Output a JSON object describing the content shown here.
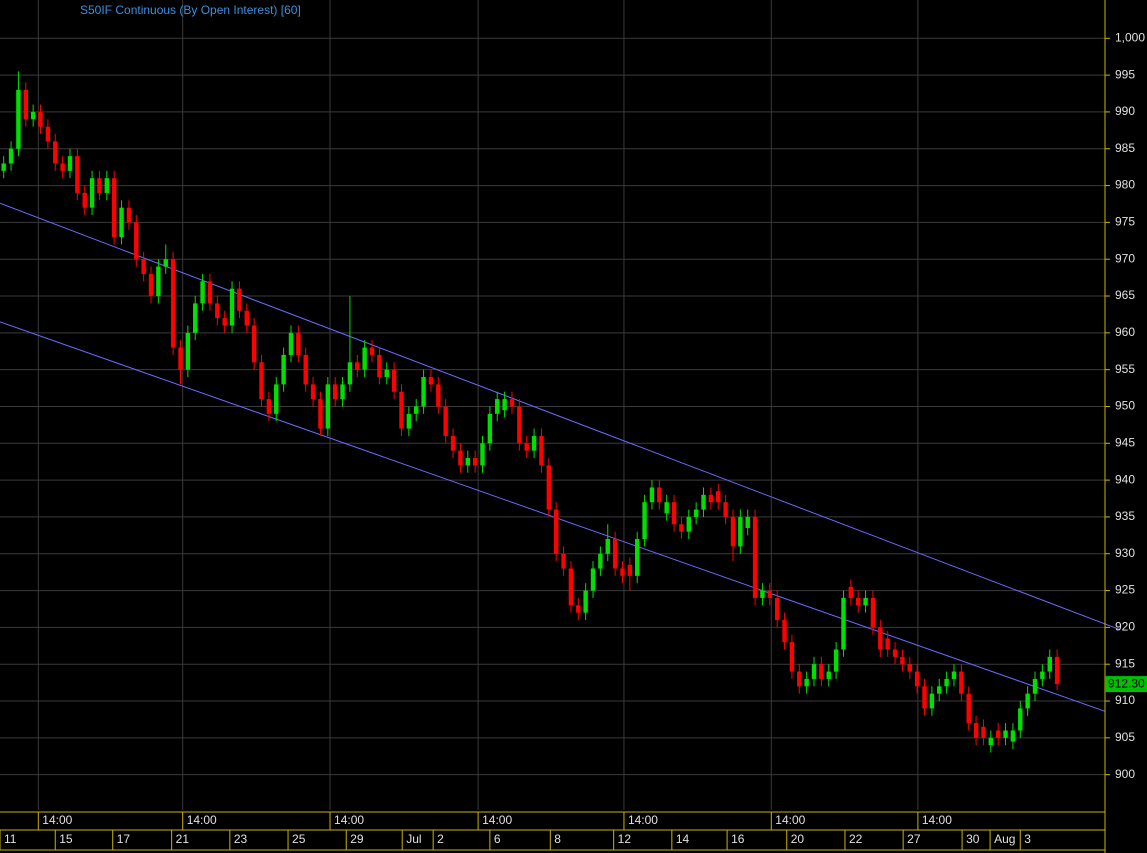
{
  "chart_data": {
    "type": "candlestick",
    "title": "S50IF Continuous (By Open Interest) [60]",
    "xlim": [
      -0.5,
      149.5
    ],
    "ylim": [
      895.2,
      1005.2
    ],
    "yticks": [
      {
        "value": 1000,
        "label": "1,000"
      },
      995,
      990,
      985,
      980,
      975,
      970,
      965,
      960,
      955,
      950,
      945,
      940,
      935,
      930,
      925,
      920,
      915,
      910,
      905,
      900
    ],
    "xticks_time": [
      {
        "value": 4.7,
        "label": "14:00"
      },
      {
        "value": 24.3,
        "label": "14:00"
      },
      {
        "value": 44.3,
        "label": "14:00"
      },
      {
        "value": 64.4,
        "label": "14:00"
      },
      {
        "value": 84.2,
        "label": "14:00"
      },
      {
        "value": 104.2,
        "label": "14:00"
      },
      {
        "value": 124.1,
        "label": "14:00"
      }
    ],
    "xticks": [
      {
        "value": -0.5,
        "label": "11"
      },
      {
        "value": 7,
        "label": "15"
      },
      {
        "value": 14.8,
        "label": "17"
      },
      {
        "value": 22.8,
        "label": "21"
      },
      {
        "value": 30.7,
        "label": "23"
      },
      {
        "value": 38.6,
        "label": "25"
      },
      {
        "value": 46.5,
        "label": "29"
      },
      {
        "value": 54.1,
        "label": "Jul"
      },
      {
        "value": 58.3,
        "label": "2"
      },
      {
        "value": 66,
        "label": "6"
      },
      {
        "value": 74.2,
        "label": "8"
      },
      {
        "value": 82.8,
        "label": "12"
      },
      {
        "value": 90.7,
        "label": "14"
      },
      {
        "value": 98.2,
        "label": "16"
      },
      {
        "value": 106.3,
        "label": "20"
      },
      {
        "value": 114.2,
        "label": "22"
      },
      {
        "value": 122.1,
        "label": "27"
      },
      {
        "value": 130.1,
        "label": "30"
      },
      {
        "value": 133.9,
        "label": "Aug"
      },
      {
        "value": 138,
        "label": "3"
      }
    ],
    "grid": true,
    "up_color": "#00e000",
    "down_color": "#ff0000",
    "open": [
      982,
      983,
      985,
      993,
      989,
      990,
      988,
      986,
      983,
      982,
      984,
      979,
      977,
      981,
      979,
      981,
      973,
      977,
      975,
      970,
      968,
      965,
      969,
      970,
      958,
      955,
      960,
      964,
      967,
      964,
      962,
      961,
      966,
      963,
      961,
      956,
      951,
      949,
      953,
      957,
      960,
      957,
      953,
      951,
      947,
      953,
      951,
      953,
      956,
      955,
      958,
      957,
      954,
      955,
      952,
      947,
      949,
      950,
      954,
      953,
      950,
      946,
      944,
      942,
      943,
      942,
      945,
      949,
      949.5,
      951,
      950,
      945,
      944,
      946,
      942,
      936,
      930,
      928,
      923,
      922,
      925,
      928,
      930,
      932,
      928,
      928.5,
      927,
      932,
      937,
      939,
      935.5,
      937,
      934,
      933,
      935,
      936,
      938,
      938.5,
      937,
      935,
      931,
      933.5,
      935,
      924,
      925,
      924,
      921,
      918,
      914,
      912,
      913,
      915,
      913,
      914,
      917,
      925.5,
      924,
      923,
      924,
      920,
      918.5,
      917,
      916,
      915,
      914,
      912,
      909,
      911,
      912,
      913,
      914,
      911,
      907,
      906.5,
      904,
      906,
      905,
      904.5,
      906,
      909,
      911,
      913,
      914,
      916
    ],
    "high": [
      984,
      986,
      995.5,
      994,
      991,
      991,
      989,
      987,
      984,
      985,
      985,
      980,
      982,
      982,
      982,
      982,
      978,
      978,
      976,
      971,
      969,
      970,
      972,
      971,
      959,
      961,
      965,
      968,
      968,
      965,
      963,
      967,
      967,
      964,
      962,
      957,
      952,
      954,
      958,
      961,
      961,
      958,
      954,
      952,
      954,
      954,
      954,
      965,
      957,
      959,
      959,
      958,
      956,
      956,
      953,
      950,
      951,
      955,
      955,
      954,
      951,
      947,
      945,
      944,
      944,
      946,
      950,
      952,
      952,
      952,
      951,
      946,
      947,
      947,
      943,
      937,
      931,
      929,
      924,
      926,
      929,
      931,
      934,
      933,
      929,
      929.5,
      933,
      938,
      940,
      940,
      938,
      938,
      935,
      936,
      937,
      939,
      939,
      939.5,
      938,
      936,
      936,
      936,
      936,
      926,
      926,
      925,
      922,
      919,
      915,
      914,
      916,
      916,
      915,
      918,
      925,
      926.5,
      925,
      925,
      925,
      921,
      919.5,
      918,
      917,
      916,
      915,
      913,
      912,
      913,
      914,
      915,
      915,
      912,
      908,
      907.5,
      906,
      907,
      907,
      907,
      910,
      912,
      914,
      915,
      917,
      917
    ],
    "low": [
      981,
      982,
      984,
      988,
      988,
      987,
      985,
      982,
      981,
      981,
      978,
      976,
      976,
      978,
      978,
      972,
      972,
      974,
      969,
      967,
      964,
      964,
      968,
      957,
      953,
      954,
      959,
      963,
      963,
      961,
      960,
      960,
      962,
      960,
      955,
      950,
      948,
      948,
      952,
      956,
      956,
      952,
      950,
      946,
      946,
      950,
      950,
      952,
      954,
      954,
      956,
      953,
      953,
      951,
      946,
      946,
      948,
      949,
      952,
      949,
      945,
      943,
      941,
      941,
      941,
      941,
      944,
      948,
      948.5,
      949,
      944,
      943,
      943,
      941,
      935,
      929,
      927,
      922,
      921,
      921,
      924,
      927,
      929,
      927,
      926,
      925,
      926,
      931,
      936,
      936,
      934.5,
      933,
      932,
      932,
      934,
      935,
      936,
      936,
      934,
      929,
      930,
      932.5,
      923,
      923,
      923,
      920,
      917,
      913,
      911,
      911,
      912,
      912,
      912,
      913,
      916,
      923,
      922,
      922,
      919,
      916,
      916,
      915,
      914,
      913,
      911,
      908,
      908,
      910,
      911,
      912,
      910,
      906,
      904,
      904,
      903,
      904,
      904,
      903.5,
      905,
      908,
      910,
      912,
      913,
      911.5
    ],
    "close": [
      983,
      985,
      993,
      989,
      990,
      988,
      986,
      983,
      982,
      984,
      979,
      977,
      981,
      979,
      981,
      973,
      977,
      975,
      970,
      968,
      965,
      969,
      970,
      958,
      955,
      960,
      964,
      967,
      964,
      962,
      961,
      966,
      963,
      961,
      956,
      951,
      949,
      953,
      957,
      960,
      957,
      953,
      951,
      947,
      953,
      951,
      953,
      956,
      955,
      958,
      957,
      954,
      955,
      952,
      947,
      949,
      950,
      954,
      953,
      950,
      946,
      944,
      942,
      943,
      942,
      945,
      949,
      951,
      951,
      950,
      945,
      944,
      946,
      942,
      936,
      930,
      928,
      923,
      922,
      925,
      928,
      930,
      932,
      928,
      927,
      927,
      932,
      937,
      939,
      937,
      937,
      934,
      933,
      935,
      936,
      938,
      937,
      937,
      935,
      931,
      935,
      935,
      924,
      925,
      924,
      921,
      918,
      914,
      912,
      913,
      915,
      913,
      914,
      917,
      924,
      924,
      923,
      924,
      920,
      917,
      917,
      916,
      915,
      914,
      912,
      909,
      911,
      912,
      913,
      914,
      911,
      907,
      905,
      905,
      905,
      905,
      906,
      906,
      909,
      911,
      913,
      914,
      916,
      912.3
    ],
    "last_label": {
      "value": 912.3,
      "label": "912.30"
    },
    "trendline_color": "#6a6aff",
    "trendlines": [
      {
        "x": [
          -0.5,
          151.5
        ],
        "values": [
          977.6,
          919.7
        ]
      },
      {
        "x": [
          -0.5,
          149.5
        ],
        "values": [
          961.5,
          908.6
        ]
      }
    ]
  }
}
